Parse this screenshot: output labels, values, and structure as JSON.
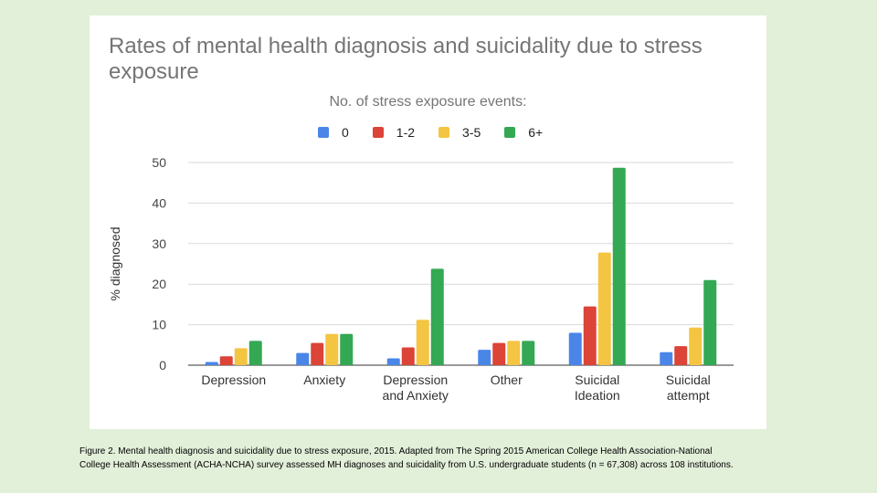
{
  "chart_data": {
    "type": "bar",
    "title": "Rates of mental health diagnosis and suicidality due to stress exposure",
    "legend_title": "No. of stress exposure events:",
    "legend_position": "top",
    "ylabel": "% diagnosed",
    "xlabel": "",
    "ylim": [
      0,
      50
    ],
    "yticks": [
      0,
      10,
      20,
      30,
      40,
      50
    ],
    "grid": true,
    "categories": [
      [
        "Depression"
      ],
      [
        "Anxiety"
      ],
      [
        "Depression",
        "and Anxiety"
      ],
      [
        "Other"
      ],
      [
        "Suicidal",
        "Ideation"
      ],
      [
        "Suicidal",
        "attempt"
      ]
    ],
    "series": [
      {
        "name": "0",
        "color": "#4a86e8",
        "values": [
          0.8,
          3.0,
          1.7,
          3.8,
          8.0,
          3.2
        ]
      },
      {
        "name": "1-2",
        "color": "#db4437",
        "values": [
          2.2,
          5.5,
          4.4,
          5.5,
          14.5,
          4.7
        ]
      },
      {
        "name": "3-5",
        "color": "#f4c542",
        "values": [
          4.2,
          7.7,
          11.2,
          6.0,
          27.8,
          9.3
        ]
      },
      {
        "name": "6+",
        "color": "#34a853",
        "values": [
          6.0,
          7.7,
          23.8,
          6.0,
          48.7,
          21.0
        ]
      }
    ]
  },
  "caption": {
    "line1": "Figure 2. Mental health diagnosis and suicidality due to stress exposure, 2015. Adapted from The Spring 2015 American College Health Association-National",
    "line2": "College Health Assessment (ACHA-NCHA) survey assessed MH diagnoses and suicidality from U.S. undergraduate students (n = 67,308) across 108 institutions."
  }
}
